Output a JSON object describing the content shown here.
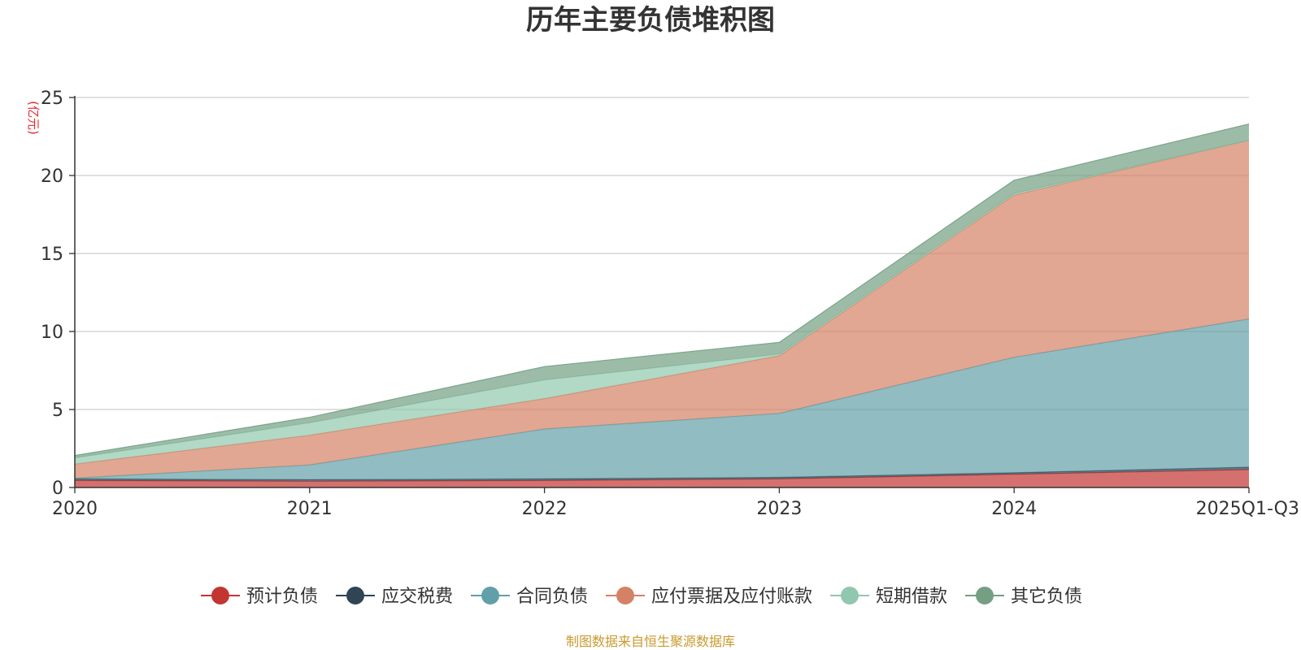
{
  "chart_data": {
    "type": "area",
    "stacked": true,
    "title": "历年主要负债堆积图",
    "unit_label": "(亿元)",
    "categories": [
      "2020",
      "2021",
      "2022",
      "2023",
      "2024",
      "2025Q1-Q3"
    ],
    "ylim": [
      0,
      25
    ],
    "yticks": [
      0,
      5,
      10,
      15,
      20,
      25
    ],
    "grid": true,
    "legend_position": "bottom",
    "series": [
      {
        "name": "预计负债",
        "color": "#c23531",
        "values": [
          0.45,
          0.4,
          0.45,
          0.55,
          0.85,
          1.15
        ]
      },
      {
        "name": "应交税费",
        "color": "#2f4554",
        "values": [
          0.1,
          0.1,
          0.1,
          0.1,
          0.1,
          0.15
        ]
      },
      {
        "name": "合同负债",
        "color": "#61a0a8",
        "values": [
          0.05,
          0.95,
          3.2,
          4.1,
          7.4,
          9.5
        ]
      },
      {
        "name": "应付票据及应付账款",
        "color": "#d48265",
        "values": [
          0.9,
          1.9,
          1.95,
          3.7,
          10.4,
          11.45
        ]
      },
      {
        "name": "短期借款",
        "color": "#91c7ae",
        "values": [
          0.4,
          0.8,
          1.2,
          0.1,
          0.1,
          0.0
        ]
      },
      {
        "name": "其它负债",
        "color": "#749f83",
        "values": [
          0.15,
          0.35,
          0.85,
          0.75,
          0.85,
          1.05
        ]
      }
    ]
  },
  "source_note": "制图数据来自恒生聚源数据库"
}
